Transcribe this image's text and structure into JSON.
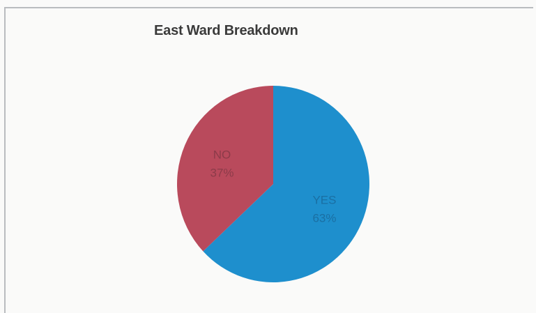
{
  "chart_data": {
    "type": "pie",
    "title": "East Ward Breakdown",
    "slices": [
      {
        "label": "YES",
        "value": 63,
        "value_label": "63%",
        "color": "#1e8fcd",
        "label_color": "#1a6fa3"
      },
      {
        "label": "NO",
        "value": 37,
        "value_label": "37%",
        "color": "#b94a5c",
        "label_color": "#8c3b49"
      }
    ]
  }
}
